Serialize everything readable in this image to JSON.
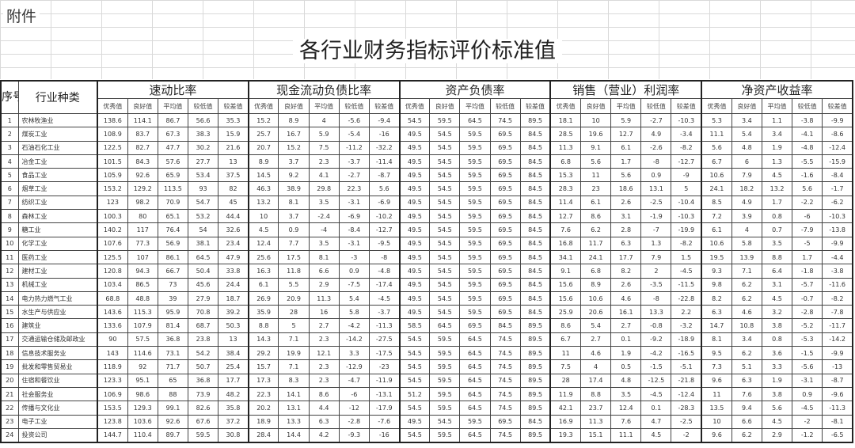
{
  "header": {
    "attachment_label": "附件",
    "title": "各行业财务指标评价标准值"
  },
  "table": {
    "seq_header": "序号",
    "industry_header": "行业种类",
    "groups": [
      "速动比率",
      "现金流动负债比率",
      "资产负债率",
      "销售（营业）利润率",
      "净资产收益率"
    ],
    "sub_headers": [
      "优秀值",
      "良好值",
      "平均值",
      "较低值",
      "较差值"
    ],
    "rows": [
      {
        "no": "1",
        "industry": "农林牧渔业",
        "values": [
          "138.6",
          "114.1",
          "86.7",
          "56.6",
          "35.3",
          "15.2",
          "8.9",
          "4",
          "-5.6",
          "-9.4",
          "54.5",
          "59.5",
          "64.5",
          "74.5",
          "89.5",
          "18.1",
          "10",
          "5.9",
          "-2.7",
          "-10.3",
          "5.3",
          "3.4",
          "1.1",
          "-3.8",
          "-9.9"
        ]
      },
      {
        "no": "2",
        "industry": "煤炭工业",
        "values": [
          "108.9",
          "83.7",
          "67.3",
          "38.3",
          "15.9",
          "25.7",
          "16.7",
          "5.9",
          "-5.4",
          "-16",
          "49.5",
          "54.5",
          "59.5",
          "69.5",
          "84.5",
          "28.5",
          "19.6",
          "12.7",
          "4.9",
          "-3.4",
          "11.1",
          "5.4",
          "3.4",
          "-4.1",
          "-8.6"
        ]
      },
      {
        "no": "3",
        "industry": "石油石化工业",
        "values": [
          "122.5",
          "82.7",
          "47.7",
          "30.2",
          "21.6",
          "20.7",
          "15.2",
          "7.5",
          "-11.2",
          "-32.2",
          "49.5",
          "54.5",
          "59.5",
          "69.5",
          "84.5",
          "11.3",
          "9.1",
          "6.1",
          "-2.6",
          "-8.2",
          "5.6",
          "4.8",
          "1.9",
          "-4.8",
          "-12.4"
        ]
      },
      {
        "no": "4",
        "industry": "冶金工业",
        "values": [
          "101.5",
          "84.3",
          "57.6",
          "27.7",
          "13",
          "8.9",
          "3.7",
          "2.3",
          "-3.7",
          "-11.4",
          "49.5",
          "54.5",
          "59.5",
          "69.5",
          "84.5",
          "6.8",
          "5.6",
          "1.7",
          "-8",
          "-12.7",
          "6.7",
          "6",
          "1.3",
          "-5.5",
          "-15.9"
        ]
      },
      {
        "no": "5",
        "industry": "食品工业",
        "values": [
          "105.9",
          "92.6",
          "65.9",
          "53.4",
          "37.5",
          "14.5",
          "9.2",
          "4.1",
          "-2.7",
          "-8.7",
          "49.5",
          "54.5",
          "59.5",
          "69.5",
          "84.5",
          "15.3",
          "11",
          "5.6",
          "0.9",
          "-9",
          "10.6",
          "7.9",
          "4.5",
          "-1.6",
          "-8.4"
        ]
      },
      {
        "no": "6",
        "industry": "烟草工业",
        "values": [
          "153.2",
          "129.2",
          "113.5",
          "93",
          "82",
          "46.3",
          "38.9",
          "29.8",
          "22.3",
          "5.6",
          "49.5",
          "54.5",
          "59.5",
          "69.5",
          "84.5",
          "28.3",
          "23",
          "18.6",
          "13.1",
          "5",
          "24.1",
          "18.2",
          "13.2",
          "5.6",
          "-1.7"
        ]
      },
      {
        "no": "7",
        "industry": "纺织工业",
        "values": [
          "123",
          "98.2",
          "70.9",
          "54.7",
          "45",
          "13.2",
          "8.1",
          "3.5",
          "-3.1",
          "-6.9",
          "49.5",
          "54.5",
          "59.5",
          "69.5",
          "84.5",
          "11.4",
          "6.1",
          "2.6",
          "-2.5",
          "-10.4",
          "8.5",
          "4.9",
          "1.7",
          "-2.2",
          "-6.2"
        ]
      },
      {
        "no": "8",
        "industry": "森林工业",
        "values": [
          "100.3",
          "80",
          "65.1",
          "53.2",
          "44.4",
          "10",
          "3.7",
          "-2.4",
          "-6.9",
          "-10.2",
          "49.5",
          "54.5",
          "59.5",
          "69.5",
          "84.5",
          "12.7",
          "8.6",
          "3.1",
          "-1.9",
          "-10.3",
          "7.2",
          "3.9",
          "0.8",
          "-6",
          "-10.3"
        ]
      },
      {
        "no": "9",
        "industry": "糖工业",
        "values": [
          "140.2",
          "117",
          "76.4",
          "54",
          "32.6",
          "4.5",
          "0.9",
          "-4",
          "-8.4",
          "-12.7",
          "49.5",
          "54.5",
          "59.5",
          "69.5",
          "84.5",
          "7.6",
          "6.2",
          "2.8",
          "-7",
          "-19.9",
          "6.1",
          "4",
          "0.7",
          "-7.9",
          "-13.8"
        ]
      },
      {
        "no": "10",
        "industry": "化学工业",
        "values": [
          "107.6",
          "77.3",
          "56.9",
          "38.1",
          "23.4",
          "12.4",
          "7.7",
          "3.5",
          "-3.1",
          "-9.5",
          "49.5",
          "54.5",
          "59.5",
          "69.5",
          "84.5",
          "16.8",
          "11.7",
          "6.3",
          "1.3",
          "-8.2",
          "10.6",
          "5.8",
          "3.5",
          "-5",
          "-9.9"
        ]
      },
      {
        "no": "11",
        "industry": "医药工业",
        "values": [
          "125.5",
          "107",
          "86.1",
          "64.5",
          "47.9",
          "25.6",
          "17.5",
          "8.1",
          "-3",
          "-8",
          "49.5",
          "54.5",
          "59.5",
          "69.5",
          "84.5",
          "34.1",
          "24.1",
          "17.7",
          "7.9",
          "1.5",
          "19.5",
          "13.9",
          "8.8",
          "1.7",
          "-4.4"
        ]
      },
      {
        "no": "12",
        "industry": "建材工业",
        "values": [
          "120.8",
          "94.3",
          "66.7",
          "50.4",
          "33.8",
          "16.3",
          "11.8",
          "6.6",
          "0.9",
          "-4.8",
          "49.5",
          "54.5",
          "59.5",
          "69.5",
          "84.5",
          "9.1",
          "6.8",
          "8.2",
          "2",
          "-4.5",
          "9.3",
          "7.1",
          "6.4",
          "-1.8",
          "-3.8"
        ]
      },
      {
        "no": "13",
        "industry": "机械工业",
        "values": [
          "103.4",
          "86.5",
          "73",
          "45.6",
          "24.4",
          "6.1",
          "5.5",
          "2.9",
          "-7.5",
          "-17.4",
          "49.5",
          "54.5",
          "59.5",
          "69.5",
          "84.5",
          "15.6",
          "8.9",
          "2.6",
          "-3.5",
          "-11.5",
          "9.8",
          "6.2",
          "3.1",
          "-5.7",
          "-11.6"
        ]
      },
      {
        "no": "14",
        "industry": "电力热力燃气工业",
        "values": [
          "68.8",
          "48.8",
          "39",
          "27.9",
          "18.7",
          "26.9",
          "20.9",
          "11.3",
          "5.4",
          "-4.5",
          "49.5",
          "54.5",
          "59.5",
          "69.5",
          "84.5",
          "15.6",
          "10.6",
          "4.6",
          "-8",
          "-22.8",
          "8.2",
          "6.2",
          "4.5",
          "-0.7",
          "-8.2"
        ]
      },
      {
        "no": "15",
        "industry": "水生产与供应业",
        "values": [
          "143.6",
          "115.3",
          "95.9",
          "70.8",
          "39.2",
          "35.9",
          "28",
          "16",
          "5.8",
          "-3.7",
          "49.5",
          "54.5",
          "59.5",
          "69.5",
          "84.5",
          "25.9",
          "20.6",
          "16.1",
          "13.3",
          "2.2",
          "6.3",
          "4.6",
          "3.2",
          "-2.8",
          "-7.8"
        ]
      },
      {
        "no": "16",
        "industry": "建筑业",
        "values": [
          "133.6",
          "107.9",
          "81.4",
          "68.7",
          "50.3",
          "8.8",
          "5",
          "2.7",
          "-4.2",
          "-11.3",
          "58.5",
          "64.5",
          "69.5",
          "84.5",
          "89.5",
          "8.6",
          "5.4",
          "2.7",
          "-0.8",
          "-3.2",
          "14.7",
          "10.8",
          "3.8",
          "-5.2",
          "-11.7"
        ]
      },
      {
        "no": "17",
        "industry": "交通运输仓储及邮政业",
        "values": [
          "90",
          "57.5",
          "36.8",
          "23.8",
          "13",
          "14.3",
          "7.1",
          "2.3",
          "-14.2",
          "-27.5",
          "54.5",
          "59.5",
          "64.5",
          "74.5",
          "89.5",
          "6.7",
          "2.7",
          "0.1",
          "-9.2",
          "-18.9",
          "8.1",
          "3.4",
          "0.8",
          "-5.3",
          "-14.2"
        ]
      },
      {
        "no": "18",
        "industry": "信息技术服务业",
        "values": [
          "143",
          "114.6",
          "73.1",
          "54.2",
          "38.4",
          "29.2",
          "19.9",
          "12.1",
          "3.3",
          "-17.5",
          "54.5",
          "59.5",
          "64.5",
          "74.5",
          "89.5",
          "11",
          "4.6",
          "1.9",
          "-4.2",
          "-16.5",
          "9.5",
          "6.2",
          "3.6",
          "-1.5",
          "-9.9"
        ]
      },
      {
        "no": "19",
        "industry": "批发和零售贸易业",
        "values": [
          "118.9",
          "92",
          "71.7",
          "50.7",
          "25.4",
          "15.7",
          "7.1",
          "2.3",
          "-12.9",
          "-23",
          "54.5",
          "59.5",
          "64.5",
          "74.5",
          "89.5",
          "7.5",
          "4",
          "0.5",
          "-1.5",
          "-5.1",
          "7.3",
          "5.1",
          "3.3",
          "-5.6",
          "-13"
        ]
      },
      {
        "no": "20",
        "industry": "住宿和餐饮业",
        "values": [
          "123.3",
          "95.1",
          "65",
          "36.8",
          "17.7",
          "17.3",
          "8.3",
          "2.3",
          "-4.7",
          "-11.9",
          "54.5",
          "59.5",
          "64.5",
          "74.5",
          "89.5",
          "28",
          "17.4",
          "4.8",
          "-12.5",
          "-21.8",
          "9.6",
          "6.3",
          "1.9",
          "-3.1",
          "-8.7"
        ]
      },
      {
        "no": "21",
        "industry": "社会服务业",
        "values": [
          "106.9",
          "98.6",
          "88",
          "73.9",
          "48.2",
          "22.3",
          "14.1",
          "8.6",
          "-6",
          "-13.1",
          "51.2",
          "59.5",
          "64.5",
          "74.5",
          "89.5",
          "11.9",
          "8.8",
          "3.5",
          "-4.5",
          "-12.4",
          "11",
          "7.6",
          "3.8",
          "0.9",
          "-9.6"
        ]
      },
      {
        "no": "22",
        "industry": "传播与文化业",
        "values": [
          "153.5",
          "129.3",
          "99.1",
          "82.6",
          "35.8",
          "20.2",
          "13.1",
          "4.4",
          "-12",
          "-17.9",
          "54.5",
          "59.5",
          "64.5",
          "74.5",
          "89.5",
          "42.1",
          "23.7",
          "12.4",
          "0.1",
          "-28.3",
          "13.5",
          "9.4",
          "5.6",
          "-4.5",
          "-11.3"
        ]
      },
      {
        "no": "23",
        "industry": "电子工业",
        "values": [
          "123.8",
          "103.6",
          "92.6",
          "67.6",
          "37.2",
          "18.9",
          "13.3",
          "6.3",
          "-2.8",
          "-7.6",
          "49.5",
          "54.5",
          "59.5",
          "69.5",
          "84.5",
          "16.9",
          "11.3",
          "7.6",
          "4.7",
          "-2.5",
          "10",
          "6.6",
          "4.5",
          "-2",
          "-8.1"
        ]
      },
      {
        "no": "24",
        "industry": "投资公司",
        "values": [
          "144.7",
          "110.4",
          "89.7",
          "59.5",
          "30.8",
          "28.4",
          "14.4",
          "4.2",
          "-9.3",
          "-16",
          "54.5",
          "59.5",
          "64.5",
          "74.5",
          "89.5",
          "19.3",
          "15.1",
          "11.1",
          "4.5",
          "-2",
          "9.6",
          "6.2",
          "2.9",
          "-1.2",
          "-6.5"
        ]
      }
    ]
  }
}
